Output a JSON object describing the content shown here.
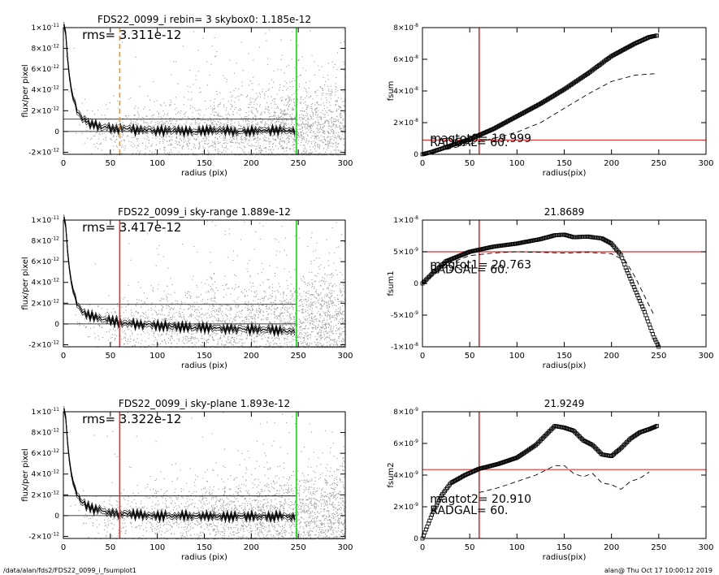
{
  "footer": {
    "path": "/data/alan/fds2/FDS22_0099_i_fsumplot1",
    "stamp": "alan@  Thu Oct 17 10:00:12 2019"
  },
  "chart_data": [
    {
      "type": "scatter",
      "title": "FDS22_0099_i rebin= 3    skybox0:  1.185e-12",
      "xlabel": "radius (pix)",
      "ylabel": "flux/per pixel",
      "xlim": [
        0,
        300
      ],
      "ylim": [
        -2.2e-12,
        1e-11
      ],
      "xticks": [
        {
          "v": 0,
          "label": "0"
        },
        {
          "v": 50,
          "label": "50"
        },
        {
          "v": 100,
          "label": "100"
        },
        {
          "v": 150,
          "label": "150"
        },
        {
          "v": 200,
          "label": "200"
        },
        {
          "v": 250,
          "label": "250"
        },
        {
          "v": 300,
          "label": "300"
        }
      ],
      "yticks": [
        {
          "v": -2e-12,
          "m": "-2×10",
          "e": "-12"
        },
        {
          "v": 0,
          "m": "0",
          "e": ""
        },
        {
          "v": 2e-12,
          "m": "2×10",
          "e": "-12"
        },
        {
          "v": 4e-12,
          "m": "4×10",
          "e": "-12"
        },
        {
          "v": 6e-12,
          "m": "6×10",
          "e": "-12"
        },
        {
          "v": 8e-12,
          "m": "8×10",
          "e": "-12"
        },
        {
          "v": 1e-11,
          "m": "1×10",
          "e": "-11"
        }
      ],
      "annotation": "rms= 3.311e-12",
      "sky_level": 1.185e-12,
      "profile_end": 8e-14,
      "noise": 1.6e-12,
      "scatter_points": 2600,
      "vlines": [
        {
          "x": 60,
          "color": "#e8961e",
          "style": "dashed"
        },
        {
          "x": 248,
          "color": "#22cc22",
          "style": "solid"
        }
      ],
      "hlines": [
        {
          "y": 0,
          "color": "#000000"
        },
        {
          "y": 1.185e-12,
          "color": "#000000"
        }
      ]
    },
    {
      "type": "line",
      "title": "",
      "xlabel": "radius(pix)",
      "ylabel": "fsum",
      "xlim": [
        0,
        300
      ],
      "ylim": [
        0,
        8e-08
      ],
      "xticks": [
        {
          "v": 0,
          "label": "0"
        },
        {
          "v": 50,
          "label": "50"
        },
        {
          "v": 100,
          "label": "100"
        },
        {
          "v": 150,
          "label": "150"
        },
        {
          "v": 200,
          "label": "200"
        },
        {
          "v": 250,
          "label": "250"
        },
        {
          "v": 300,
          "label": "300"
        }
      ],
      "yticks": [
        {
          "v": 0,
          "m": "0",
          "e": ""
        },
        {
          "v": 2e-08,
          "m": "2×10",
          "e": "-8"
        },
        {
          "v": 4e-08,
          "m": "4×10",
          "e": "-8"
        },
        {
          "v": 6e-08,
          "m": "6×10",
          "e": "-8"
        },
        {
          "v": 8e-08,
          "m": "8×10",
          "e": "-8"
        }
      ],
      "series": [
        {
          "style": "markers",
          "x": [
            0,
            10,
            25,
            50,
            75,
            100,
            125,
            150,
            175,
            200,
            225,
            240,
            248
          ],
          "y": [
            0,
            1.5e-09,
            4.5e-09,
            9.5e-09,
            1.6e-08,
            2.4e-08,
            3.2e-08,
            4.1e-08,
            5.1e-08,
            6.2e-08,
            7e-08,
            7.4e-08,
            7.5e-08
          ]
        },
        {
          "style": "dashed",
          "x": [
            0,
            25,
            50,
            75,
            100,
            125,
            150,
            175,
            200,
            225,
            248
          ],
          "y": [
            0,
            3e-09,
            6.5e-09,
            1e-08,
            1.4e-08,
            2e-08,
            2.9e-08,
            3.8e-08,
            4.6e-08,
            5e-08,
            5.1e-08
          ]
        }
      ],
      "vlines": [
        {
          "x": 60,
          "color": "#e03030"
        }
      ],
      "hlines": [
        {
          "y": 9e-09,
          "color": "#e03030"
        }
      ],
      "annotations": [
        {
          "x": 8,
          "y": 7.6e-09,
          "text": "magtot0=  19.999"
        },
        {
          "x": 8,
          "y": 5.2e-09,
          "text": "RADGAL=     60."
        }
      ]
    },
    {
      "type": "scatter",
      "title": "FDS22_0099_i sky-range  1.889e-12",
      "xlabel": "radius (pix)",
      "ylabel": "flux/per pixel",
      "xlim": [
        0,
        300
      ],
      "ylim": [
        -2.2e-12,
        1e-11
      ],
      "xticks": [
        {
          "v": 0,
          "label": "0"
        },
        {
          "v": 50,
          "label": "50"
        },
        {
          "v": 100,
          "label": "100"
        },
        {
          "v": 150,
          "label": "150"
        },
        {
          "v": 200,
          "label": "200"
        },
        {
          "v": 250,
          "label": "250"
        },
        {
          "v": 300,
          "label": "300"
        }
      ],
      "yticks": [
        {
          "v": -2e-12,
          "m": "-2×10",
          "e": "-12"
        },
        {
          "v": 0,
          "m": "0",
          "e": ""
        },
        {
          "v": 2e-12,
          "m": "2×10",
          "e": "-12"
        },
        {
          "v": 4e-12,
          "m": "4×10",
          "e": "-12"
        },
        {
          "v": 6e-12,
          "m": "6×10",
          "e": "-12"
        },
        {
          "v": 8e-12,
          "m": "8×10",
          "e": "-12"
        },
        {
          "v": 1e-11,
          "m": "1×10",
          "e": "-11"
        }
      ],
      "annotation": "rms= 3.417e-12",
      "sky_level": 1.889e-12,
      "profile_end": -7e-13,
      "noise": 1.6e-12,
      "scatter_points": 2600,
      "vlines": [
        {
          "x": 60,
          "color": "#e03030",
          "style": "solid"
        },
        {
          "x": 248,
          "color": "#22cc22",
          "style": "solid"
        }
      ],
      "hlines": [
        {
          "y": 0,
          "color": "#000000"
        },
        {
          "y": 1.889e-12,
          "color": "#000000"
        }
      ]
    },
    {
      "type": "line",
      "title": "21.8689",
      "xlabel": "radius(pix)",
      "ylabel": "fsum1",
      "xlim": [
        0,
        300
      ],
      "ylim": [
        -1e-08,
        1e-08
      ],
      "xticks": [
        {
          "v": 0,
          "label": "0"
        },
        {
          "v": 50,
          "label": "50"
        },
        {
          "v": 100,
          "label": "100"
        },
        {
          "v": 150,
          "label": "150"
        },
        {
          "v": 200,
          "label": "200"
        },
        {
          "v": 250,
          "label": "250"
        },
        {
          "v": 300,
          "label": "300"
        }
      ],
      "yticks": [
        {
          "v": -1e-08,
          "m": "-1×10",
          "e": "-8"
        },
        {
          "v": -5e-09,
          "m": "-5×10",
          "e": "-9"
        },
        {
          "v": 0,
          "m": "0",
          "e": ""
        },
        {
          "v": 5e-09,
          "m": "5×10",
          "e": "-9"
        },
        {
          "v": 1e-08,
          "m": "1×10",
          "e": "-8"
        }
      ],
      "series": [
        {
          "style": "markers",
          "x": [
            0,
            10,
            25,
            50,
            75,
            100,
            125,
            140,
            150,
            160,
            175,
            190,
            200,
            210,
            215,
            225,
            235,
            245,
            250
          ],
          "y": [
            0,
            1.5e-09,
            3.5e-09,
            5e-09,
            5.8e-09,
            6.3e-09,
            7e-09,
            7.6e-09,
            7.7e-09,
            7.3e-09,
            7.4e-09,
            7.1e-09,
            6.3e-09,
            4.5e-09,
            2.5e-09,
            -1e-09,
            -4.5e-09,
            -8.5e-09,
            -1e-08
          ]
        },
        {
          "style": "dashed",
          "x": [
            0,
            25,
            50,
            75,
            100,
            125,
            150,
            175,
            200,
            215,
            225,
            235,
            245
          ],
          "y": [
            0,
            3e-09,
            4.4e-09,
            4.8e-09,
            5e-09,
            4.9e-09,
            4.8e-09,
            4.9e-09,
            4.7e-09,
            3.5e-09,
            1e-09,
            -2e-09,
            -5e-09
          ]
        }
      ],
      "vlines": [
        {
          "x": 60,
          "color": "#e03030"
        }
      ],
      "hlines": [
        {
          "y": 5e-09,
          "color": "#e03030"
        }
      ],
      "annotations": [
        {
          "x": 8,
          "y": 2.4e-09,
          "text": "magtot1=  20.763"
        },
        {
          "x": 8,
          "y": 1.6e-09,
          "text": "RADGAL=     60."
        }
      ]
    },
    {
      "type": "scatter",
      "title": "FDS22_0099_i sky-plane  1.893e-12",
      "xlabel": "radius (pix)",
      "ylabel": "flux/per pixel",
      "xlim": [
        0,
        300
      ],
      "ylim": [
        -2.2e-12,
        1e-11
      ],
      "xticks": [
        {
          "v": 0,
          "label": "0"
        },
        {
          "v": 50,
          "label": "50"
        },
        {
          "v": 100,
          "label": "100"
        },
        {
          "v": 150,
          "label": "150"
        },
        {
          "v": 200,
          "label": "200"
        },
        {
          "v": 250,
          "label": "250"
        },
        {
          "v": 300,
          "label": "300"
        }
      ],
      "yticks": [
        {
          "v": -2e-12,
          "m": "-2×10",
          "e": "-12"
        },
        {
          "v": 0,
          "m": "0",
          "e": ""
        },
        {
          "v": 2e-12,
          "m": "2×10",
          "e": "-12"
        },
        {
          "v": 4e-12,
          "m": "4×10",
          "e": "-12"
        },
        {
          "v": 6e-12,
          "m": "6×10",
          "e": "-12"
        },
        {
          "v": 8e-12,
          "m": "8×10",
          "e": "-12"
        },
        {
          "v": 1e-11,
          "m": "1×10",
          "e": "-11"
        }
      ],
      "annotation": "rms= 3.322e-12",
      "sky_level": 1.893e-12,
      "profile_end": -1e-13,
      "noise": 1.6e-12,
      "scatter_points": 2600,
      "vlines": [
        {
          "x": 60,
          "color": "#e03030",
          "style": "solid"
        },
        {
          "x": 248,
          "color": "#22cc22",
          "style": "solid"
        }
      ],
      "hlines": [
        {
          "y": 0,
          "color": "#000000"
        },
        {
          "y": 1.893e-12,
          "color": "#000000"
        }
      ]
    },
    {
      "type": "line",
      "title": "21.9249",
      "xlabel": "radius(pix)",
      "ylabel": "fsum2",
      "xlim": [
        0,
        300
      ],
      "ylim": [
        0,
        8e-09
      ],
      "xticks": [
        {
          "v": 0,
          "label": "0"
        },
        {
          "v": 50,
          "label": "50"
        },
        {
          "v": 100,
          "label": "100"
        },
        {
          "v": 150,
          "label": "150"
        },
        {
          "v": 200,
          "label": "200"
        },
        {
          "v": 250,
          "label": "250"
        },
        {
          "v": 300,
          "label": "300"
        }
      ],
      "yticks": [
        {
          "v": 0,
          "m": "0",
          "e": ""
        },
        {
          "v": 2e-09,
          "m": "2×10",
          "e": "-9"
        },
        {
          "v": 4e-09,
          "m": "4×10",
          "e": "-9"
        },
        {
          "v": 6e-09,
          "m": "6×10",
          "e": "-9"
        },
        {
          "v": 8e-09,
          "m": "8×10",
          "e": "-9"
        }
      ],
      "series": [
        {
          "style": "markers",
          "x": [
            0,
            10,
            20,
            30,
            45,
            60,
            80,
            100,
            120,
            130,
            140,
            150,
            160,
            170,
            180,
            190,
            200,
            210,
            220,
            230,
            240,
            248
          ],
          "y": [
            0,
            1.5e-09,
            2.7e-09,
            3.5e-09,
            4e-09,
            4.4e-09,
            4.7e-09,
            5.1e-09,
            5.9e-09,
            6.5e-09,
            7.1e-09,
            7e-09,
            6.8e-09,
            6.2e-09,
            5.9e-09,
            5.3e-09,
            5.2e-09,
            5.7e-09,
            6.3e-09,
            6.7e-09,
            6.9e-09,
            7.1e-09
          ]
        },
        {
          "style": "dashed",
          "x": [
            60,
            80,
            100,
            120,
            140,
            150,
            160,
            170,
            180,
            190,
            200,
            210,
            220,
            230,
            240
          ],
          "y": [
            2.9e-09,
            3.2e-09,
            3.6e-09,
            4e-09,
            4.6e-09,
            4.6e-09,
            4.1e-09,
            3.9e-09,
            4.1e-09,
            3.5e-09,
            3.4e-09,
            3.1e-09,
            3.6e-09,
            3.8e-09,
            4.2e-09
          ]
        }
      ],
      "vlines": [
        {
          "x": 60,
          "color": "#e03030"
        }
      ],
      "hlines": [
        {
          "y": 4.35e-09,
          "color": "#e03030"
        }
      ],
      "annotations": [
        {
          "x": 8,
          "y": 2.25e-09,
          "text": "magtot2=  20.910"
        },
        {
          "x": 8,
          "y": 1.55e-09,
          "text": "RADGAL=     60."
        }
      ]
    }
  ]
}
